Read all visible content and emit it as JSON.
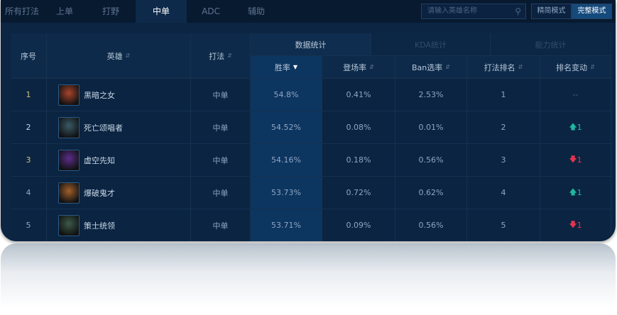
{
  "tabs": [
    "所有打法",
    "上单",
    "打野",
    "中单",
    "ADC",
    "辅助"
  ],
  "active_tab": "中单",
  "search": {
    "placeholder": "请输入英雄名称",
    "icon": "search-icon"
  },
  "modes": [
    "精简模式",
    "完整模式"
  ],
  "groups": [
    "数据统计",
    "KDA统计",
    "能力统计"
  ],
  "headers": {
    "rank": "序号",
    "hero": "英雄",
    "role": "打法",
    "win": "胜率",
    "pick": "登场率",
    "ban": "Ban选率",
    "role_rank": "打法排名",
    "change": "排名变动"
  },
  "colors": {
    "up": "#1fb7a1",
    "down": "#e2354e",
    "rank_top": "#d9c27a"
  },
  "rows": [
    {
      "rank": "1",
      "hero": "黑暗之女",
      "role": "中单",
      "win": "54.8%",
      "pick": "0.41%",
      "ban": "2.53%",
      "role_rank": "1",
      "change": "--",
      "dir": ""
    },
    {
      "rank": "2",
      "hero": "死亡颂唱者",
      "role": "中单",
      "win": "54.52%",
      "pick": "0.08%",
      "ban": "0.01%",
      "role_rank": "2",
      "change": "1",
      "dir": "up"
    },
    {
      "rank": "3",
      "hero": "虚空先知",
      "role": "中单",
      "win": "54.16%",
      "pick": "0.18%",
      "ban": "0.56%",
      "role_rank": "3",
      "change": "1",
      "dir": "down"
    },
    {
      "rank": "4",
      "hero": "爆破鬼才",
      "role": "中单",
      "win": "53.73%",
      "pick": "0.72%",
      "ban": "0.62%",
      "role_rank": "4",
      "change": "1",
      "dir": "up"
    },
    {
      "rank": "5",
      "hero": "策士统领",
      "role": "中单",
      "win": "53.71%",
      "pick": "0.09%",
      "ban": "0.56%",
      "role_rank": "5",
      "change": "1",
      "dir": "down"
    }
  ]
}
